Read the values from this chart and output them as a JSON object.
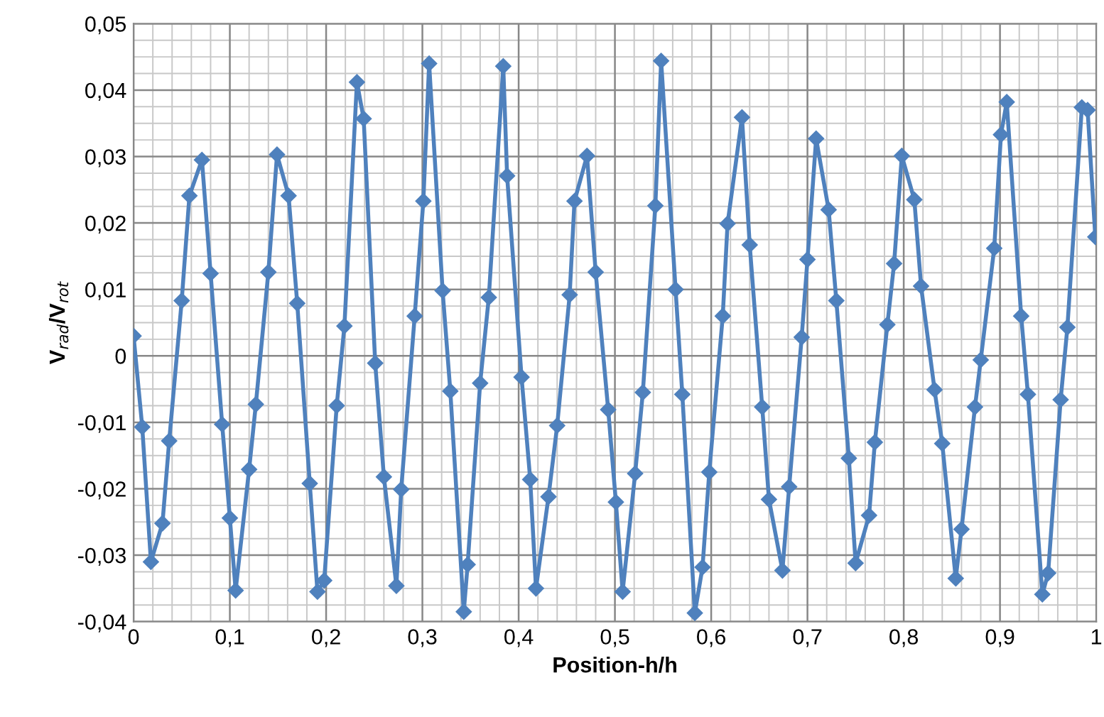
{
  "chart_data": {
    "type": "line",
    "xlabel": "Position-h/h",
    "ylabel": "V$_{rad}$/V$_{rot}$",
    "x": [
      0,
      0.009,
      0.018,
      0.03,
      0.037,
      0.05,
      0.058,
      0.071,
      0.08,
      0.092,
      0.1,
      0.106,
      0.12,
      0.127,
      0.14,
      0.149,
      0.161,
      0.17,
      0.183,
      0.191,
      0.198,
      0.211,
      0.219,
      0.232,
      0.239,
      0.251,
      0.26,
      0.273,
      0.278,
      0.292,
      0.301,
      0.307,
      0.321,
      0.329,
      0.343,
      0.347,
      0.36,
      0.369,
      0.384,
      0.388,
      0.403,
      0.412,
      0.418,
      0.431,
      0.44,
      0.453,
      0.458,
      0.471,
      0.48,
      0.493,
      0.501,
      0.508,
      0.521,
      0.529,
      0.542,
      0.548,
      0.563,
      0.57,
      0.583,
      0.591,
      0.598,
      0.612,
      0.617,
      0.632,
      0.64,
      0.653,
      0.66,
      0.674,
      0.681,
      0.694,
      0.7,
      0.709,
      0.722,
      0.73,
      0.743,
      0.75,
      0.764,
      0.77,
      0.783,
      0.79,
      0.798,
      0.811,
      0.818,
      0.832,
      0.84,
      0.854,
      0.86,
      0.874,
      0.88,
      0.894,
      0.901,
      0.907,
      0.922,
      0.929,
      0.944,
      0.95,
      0.963,
      0.97,
      0.985,
      0.991,
      0.999
    ],
    "series": [
      {
        "color": "#4f81bd",
        "values": [
          0.003,
          -0.0107,
          -0.031,
          -0.0252,
          -0.0128,
          0.0083,
          0.0241,
          0.0295,
          0.0124,
          -0.0103,
          -0.0244,
          -0.0353,
          -0.0171,
          -0.0073,
          0.0126,
          0.0303,
          0.0241,
          0.0079,
          -0.0192,
          -0.0355,
          -0.0338,
          -0.0075,
          0.0045,
          0.0412,
          0.0357,
          -0.0011,
          -0.0182,
          -0.0346,
          -0.0201,
          0.006,
          0.0233,
          0.044,
          0.0098,
          -0.0053,
          -0.0385,
          -0.0314,
          -0.0041,
          0.0088,
          0.0436,
          0.0271,
          -0.0032,
          -0.0186,
          -0.035,
          -0.0212,
          -0.0105,
          0.0092,
          0.0233,
          0.0301,
          0.0126,
          -0.0081,
          -0.022,
          -0.0355,
          -0.0177,
          -0.0055,
          0.0226,
          0.0444,
          0.01,
          -0.0058,
          -0.0387,
          -0.0318,
          -0.0175,
          0.006,
          0.0199,
          0.0359,
          0.0167,
          -0.0077,
          -0.0216,
          -0.0323,
          -0.0197,
          0.0028,
          0.0145,
          0.0327,
          0.022,
          0.0083,
          -0.0154,
          -0.0312,
          -0.024,
          -0.013,
          0.0047,
          0.0139,
          0.0301,
          0.0235,
          0.0105,
          -0.0051,
          -0.0132,
          -0.0335,
          -0.0261,
          -0.0077,
          -0.0006,
          0.0162,
          0.0333,
          0.0382,
          0.006,
          -0.0058,
          -0.0359,
          -0.0327,
          -0.0066,
          0.0043,
          0.0374,
          0.037,
          0.0179
        ]
      }
    ],
    "xlim": [
      0,
      1
    ],
    "ylim": [
      -0.04,
      0.05
    ],
    "xticks": [
      0,
      {
        "value": 0.1,
        "label": "0,1"
      },
      {
        "value": 0.2,
        "label": "0,2"
      },
      {
        "value": 0.3,
        "label": "0,3"
      },
      {
        "value": 0.4,
        "label": "0,4"
      },
      {
        "value": 0.5,
        "label": "0,5"
      },
      {
        "value": 0.6,
        "label": "0,6"
      },
      {
        "value": 0.7,
        "label": "0,7"
      },
      {
        "value": 0.8,
        "label": "0,8"
      },
      {
        "value": 0.9,
        "label": "0,9"
      },
      1
    ],
    "yticks": [
      {
        "value": -0.04,
        "label": "-0,04"
      },
      {
        "value": -0.03,
        "label": "-0,03"
      },
      {
        "value": -0.02,
        "label": "-0,02"
      },
      {
        "value": -0.01,
        "label": "-0,01"
      },
      0,
      {
        "value": 0.01,
        "label": "0,01"
      },
      {
        "value": 0.02,
        "label": "0,02"
      },
      {
        "value": 0.03,
        "label": "0,03"
      },
      {
        "value": 0.04,
        "label": "0,04"
      },
      {
        "value": 0.05,
        "label": "0,05"
      }
    ],
    "grid": true,
    "marker": "diamond",
    "line_style": "solid",
    "legend": false
  }
}
